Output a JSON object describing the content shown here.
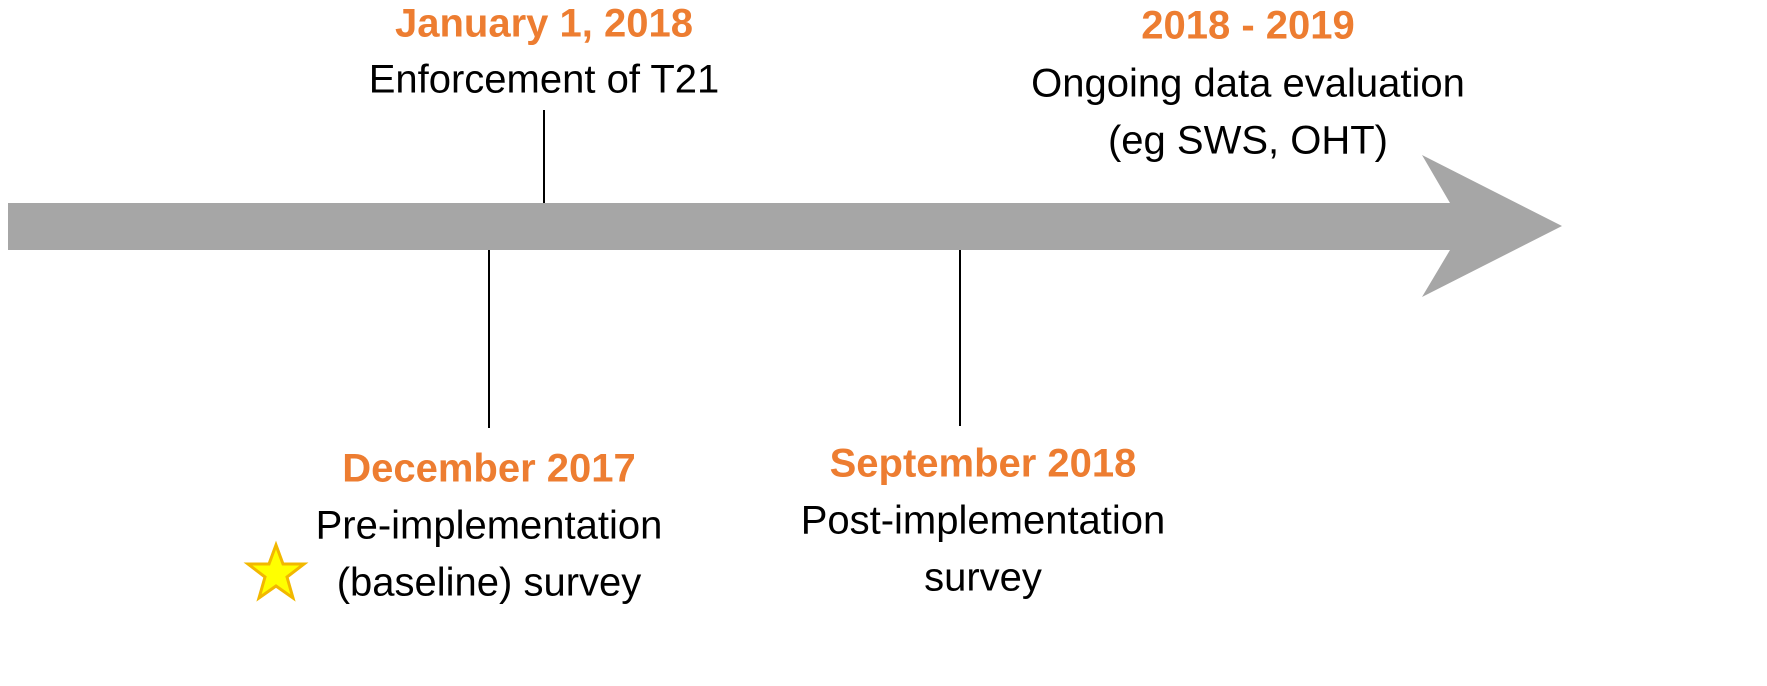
{
  "events": [
    {
      "date": "January 1, 2018",
      "lines": [
        "Enforcement of T21"
      ]
    },
    {
      "date": "2018 - 2019",
      "lines": [
        "Ongoing data evaluation",
        "(eg SWS, OHT)"
      ]
    },
    {
      "date": "December 2017",
      "lines": [
        "Pre-implementation",
        "(baseline) survey"
      ]
    },
    {
      "date": "September 2018",
      "lines": [
        "Post-implementation",
        "survey"
      ]
    }
  ]
}
